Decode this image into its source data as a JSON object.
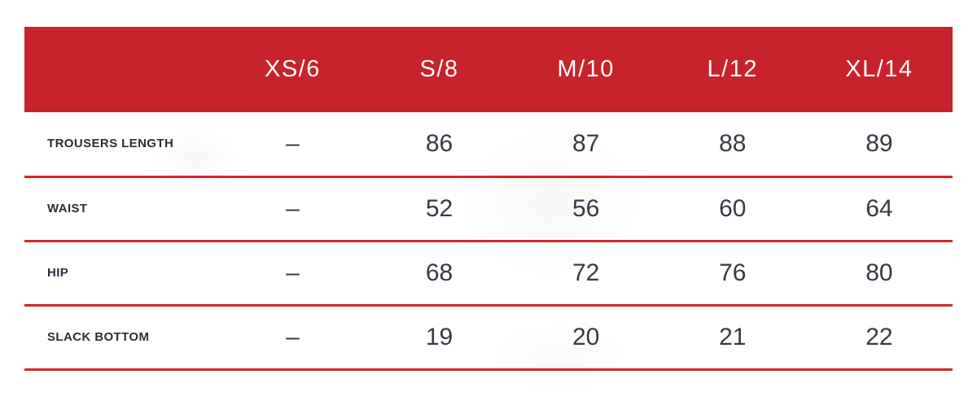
{
  "chart_data": {
    "type": "table",
    "columns": [
      "XS/6",
      "S/8",
      "M/10",
      "L/12",
      "XL/14"
    ],
    "rows": [
      {
        "label": "TROUSERS LENGTH",
        "values": [
          "–",
          "86",
          "87",
          "88",
          "89"
        ]
      },
      {
        "label": "WAIST",
        "values": [
          "–",
          "52",
          "56",
          "60",
          "64"
        ]
      },
      {
        "label": "HIP",
        "values": [
          "–",
          "68",
          "72",
          "76",
          "80"
        ]
      },
      {
        "label": "SLACK BOTTOM",
        "values": [
          "–",
          "19",
          "20",
          "21",
          "22"
        ]
      }
    ]
  },
  "colors": {
    "header_bg": "#C8232C",
    "divider": "#D22830",
    "header_text": "#FFFFFF",
    "label_text": "#27303B",
    "value_text": "#333B46",
    "background": "#FFFFFF"
  }
}
